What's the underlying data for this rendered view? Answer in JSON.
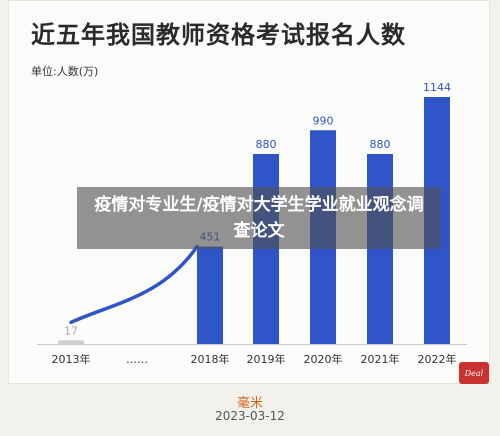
{
  "card": {
    "unit": "单位:人数(万)",
    "overlay_text": "疫情对专业生/疫情对大学生学业就业观念调查论文",
    "badge": "Deal"
  },
  "chart_data": {
    "type": "bar",
    "title": "近五年我国教师资格考试报名人数",
    "ylabel": "单位:人数(万)",
    "categories": [
      "2013年",
      "……",
      "2018年",
      "2019年",
      "2020年",
      "2021年",
      "2022年"
    ],
    "values": [
      17,
      null,
      451,
      880,
      990,
      880,
      1144
    ],
    "value_labels": [
      "17",
      "",
      "451",
      "880",
      "990",
      "880",
      "1144"
    ],
    "ylim": [
      0,
      1144
    ],
    "colors": {
      "bar": "#2f55c9",
      "first_bar": "#cfcfcf",
      "curve": "#2f55c9"
    }
  },
  "footer": {
    "author": "毫米",
    "date": "2023-03-12"
  }
}
